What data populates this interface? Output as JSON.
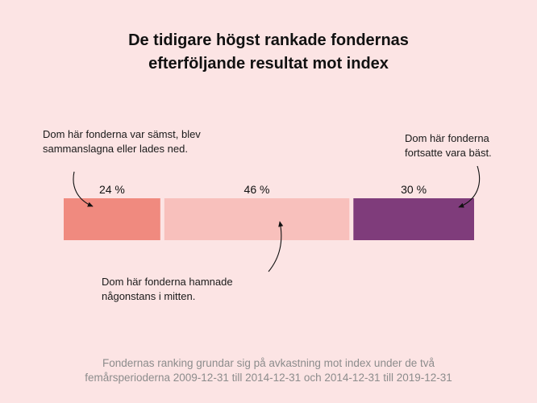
{
  "title": {
    "line1": "De tidigare högst rankade fondernas",
    "line2": "efterföljande resultat mot index"
  },
  "annotations": {
    "left": {
      "line1": "Dom här fonderna var sämst, blev",
      "line2": "sammanslagna eller lades ned."
    },
    "right": {
      "line1": "Dom här fonderna",
      "line2": "fortsatte vara bäst."
    },
    "middle": {
      "line1": "Dom här fonderna hamnade",
      "line2": "någonstans i mitten."
    }
  },
  "footer": {
    "line1": "Fondernas ranking grundar sig på avkastning mot index under de två",
    "line2": "femårsperioderna 2009-12-31 till 2014-12-31 och 2014-12-31 till 2019-12-31"
  },
  "chart_data": {
    "type": "bar",
    "orientation": "horizontal-stacked",
    "categories": [
      "Sämst / sammanslagna / nedlagda",
      "I mitten",
      "Fortsatte vara bäst"
    ],
    "values": [
      24,
      46,
      30
    ],
    "labels": [
      "24 %",
      "46 %",
      "30 %"
    ],
    "colors": [
      "#f08a7f",
      "#f8c0bc",
      "#7f3c7b"
    ]
  }
}
